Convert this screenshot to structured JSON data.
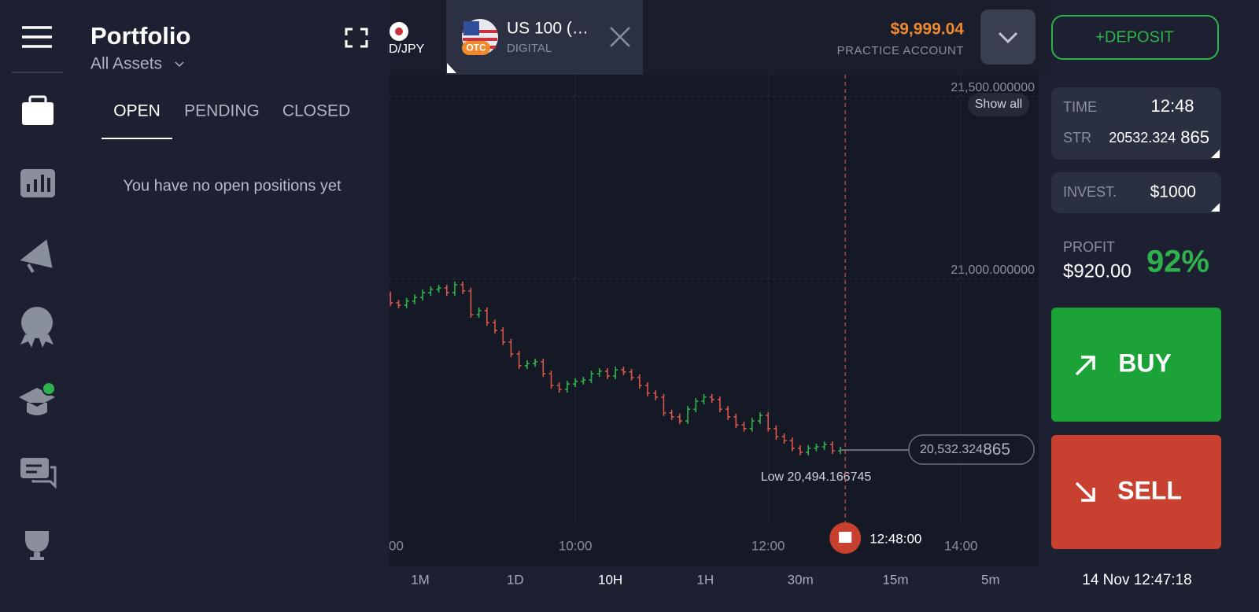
{
  "portfolio": {
    "title": "Portfolio",
    "filter": "All Assets",
    "tabs": [
      "OPEN",
      "PENDING",
      "CLOSED"
    ],
    "empty_message": "You have no open positions yet"
  },
  "asset_tabs": [
    {
      "name": "D/JPY"
    },
    {
      "name": "US 100 (…",
      "subtitle": "DIGITAL",
      "badge": "OTC"
    }
  ],
  "account": {
    "balance": "$9,999.04",
    "label": "PRACTICE ACCOUNT",
    "deposit": "+DEPOSIT"
  },
  "trade": {
    "time_label": "TIME",
    "time": "12:48",
    "str_label": "STR",
    "str_value": "20532.324",
    "str_value_tail": "865",
    "invest_label": "INVEST.",
    "invest": "$1000",
    "profit_label": "PROFIT",
    "profit": "$920.00",
    "payout": "92%"
  },
  "buttons": {
    "buy": "BUY",
    "sell": "SELL"
  },
  "chart_data": {
    "type": "candlestick",
    "x": [
      480,
      485,
      490,
      495,
      500,
      505,
      510,
      515,
      520,
      525,
      530,
      535,
      540,
      545,
      550,
      555,
      560,
      565,
      570,
      575,
      580,
      585,
      590,
      595,
      600,
      605,
      610,
      615,
      620,
      625,
      630,
      635,
      640,
      645,
      650,
      655,
      660,
      665,
      670,
      675,
      680,
      685,
      690,
      695,
      700,
      705,
      710,
      715,
      720,
      725,
      730,
      735,
      740,
      745,
      750,
      755,
      760,
      765
    ],
    "values": [
      20957,
      20935,
      20929,
      20940,
      20950,
      20963,
      20972,
      20976,
      20963,
      20985,
      20968,
      20903,
      20914,
      20881,
      20860,
      20828,
      20795,
      20763,
      20769,
      20774,
      20741,
      20709,
      20698,
      20713,
      20720,
      20724,
      20741,
      20748,
      20735,
      20752,
      20746,
      20731,
      20709,
      20688,
      20677,
      20634,
      20623,
      20612,
      20644,
      20666,
      20677,
      20670,
      20644,
      20623,
      20601,
      20591,
      20612,
      20627,
      20591,
      20569,
      20558,
      20537,
      20526,
      20537,
      20541,
      20547,
      20530,
      20532
    ],
    "xlim": [
      478,
      882
    ],
    "xticks": [
      {
        "value": 480,
        "label": "00"
      },
      {
        "value": 600,
        "label": "10:00"
      },
      {
        "value": 720,
        "label": "12:00"
      },
      {
        "value": 840,
        "label": "14:00"
      }
    ],
    "ylim": [
      20332,
      21560
    ],
    "yticks": [
      {
        "value": 21500,
        "label": "21,500.000000"
      },
      {
        "value": 21000,
        "label": "21,000.000000"
      }
    ],
    "up_color": "#2fb24c",
    "down_color": "#d9574a",
    "current_time": {
      "value": 768,
      "label": "12:48:00"
    },
    "current_price_label": [
      "20,532.324",
      "865"
    ],
    "low_label": "Low 20,494.166745",
    "show_all": "Show all"
  },
  "timeframes": [
    "1M",
    "1D",
    "10H",
    "1H",
    "30m",
    "15m",
    "5m"
  ],
  "datetime": "14 Nov 12:47:18"
}
